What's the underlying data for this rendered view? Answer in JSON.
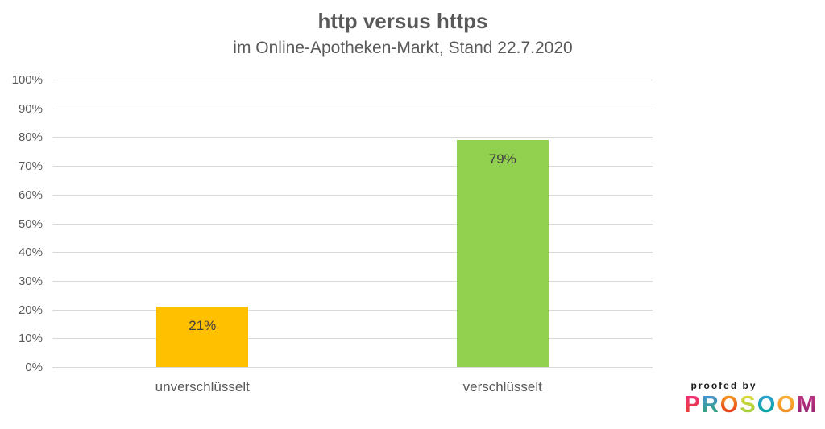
{
  "chart_data": {
    "type": "bar",
    "title": "http versus https",
    "subtitle": "im Online-Apotheken-Markt, Stand 22.7.2020",
    "categories": [
      "unverschlüsselt",
      "verschlüsselt"
    ],
    "values": [
      21,
      79
    ],
    "value_labels": [
      "21%",
      "79%"
    ],
    "bar_colors": [
      "#FFC000",
      "#92D050"
    ],
    "ylim": [
      0,
      100
    ],
    "ytick_step": 10,
    "ytick_labels": [
      "0%",
      "10%",
      "20%",
      "30%",
      "40%",
      "50%",
      "60%",
      "70%",
      "80%",
      "90%",
      "100%"
    ],
    "grid": true,
    "legend": false
  },
  "colors": {
    "title_text": "#595959",
    "axis_text": "#595959",
    "value_label_text": "#404040",
    "gridline": "#D9D9D9",
    "background": "#FFFFFF",
    "bar_unverschluesselt": "#FFC000",
    "bar_verschluesselt": "#92D050"
  },
  "logo": {
    "proofed_by": "proofed by",
    "brand": "PROSOOM",
    "letters": [
      {
        "char": "P",
        "from": "#ED2E7C",
        "to": "#E8432B"
      },
      {
        "char": "R",
        "from": "#4A90D9",
        "to": "#2FA66A"
      },
      {
        "char": "O",
        "from": "#F6A21D",
        "to": "#E2261C"
      },
      {
        "char": "S",
        "from": "#E0DD35",
        "to": "#96C93D"
      },
      {
        "char": "O",
        "from": "#2F9FD8",
        "to": "#00A693"
      },
      {
        "char": "O",
        "from": "#F9B233",
        "to": "#F18825"
      },
      {
        "char": "M",
        "from": "#C13584",
        "to": "#93216E"
      }
    ]
  }
}
